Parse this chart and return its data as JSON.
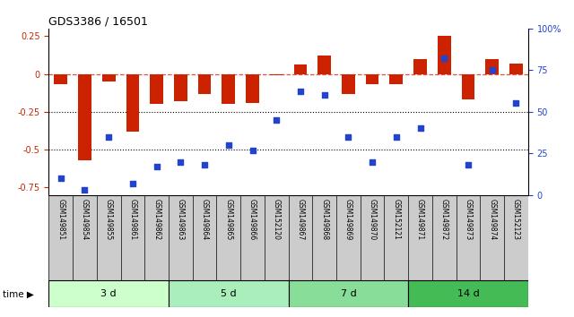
{
  "title": "GDS3386 / 16501",
  "samples": [
    "GSM149851",
    "GSM149854",
    "GSM149855",
    "GSM149861",
    "GSM149862",
    "GSM149863",
    "GSM149864",
    "GSM149865",
    "GSM149866",
    "GSM152120",
    "GSM149867",
    "GSM149868",
    "GSM149869",
    "GSM149870",
    "GSM152121",
    "GSM149871",
    "GSM149872",
    "GSM149873",
    "GSM149874",
    "GSM152123"
  ],
  "log2_ratio": [
    -0.07,
    -0.57,
    -0.05,
    -0.38,
    -0.2,
    -0.18,
    -0.13,
    -0.2,
    -0.19,
    -0.01,
    0.06,
    0.12,
    -0.13,
    -0.07,
    -0.07,
    0.1,
    0.25,
    -0.17,
    0.1,
    0.07
  ],
  "percentile_rank": [
    10,
    3,
    35,
    7,
    17,
    20,
    18,
    30,
    27,
    45,
    62,
    60,
    35,
    20,
    35,
    40,
    82,
    18,
    75,
    55
  ],
  "groups": [
    {
      "label": "3 d",
      "start": 0,
      "end": 5,
      "color": "#ccffcc"
    },
    {
      "label": "5 d",
      "start": 5,
      "end": 10,
      "color": "#aaeebb"
    },
    {
      "label": "7 d",
      "start": 10,
      "end": 15,
      "color": "#88dd99"
    },
    {
      "label": "14 d",
      "start": 15,
      "end": 20,
      "color": "#44bb55"
    }
  ],
  "bar_color": "#cc2200",
  "dot_color": "#2244cc",
  "ylim_left": [
    -0.8,
    0.3
  ],
  "ylim_right": [
    0,
    100
  ],
  "yticks_left": [
    -0.75,
    -0.5,
    -0.25,
    0,
    0.25
  ],
  "yticks_right": [
    0,
    25,
    50,
    75,
    100
  ],
  "background_color": "#ffffff",
  "dotted_lines": [
    -0.25,
    -0.5
  ],
  "dashed_line": 0.0,
  "label_bg": "#cccccc"
}
